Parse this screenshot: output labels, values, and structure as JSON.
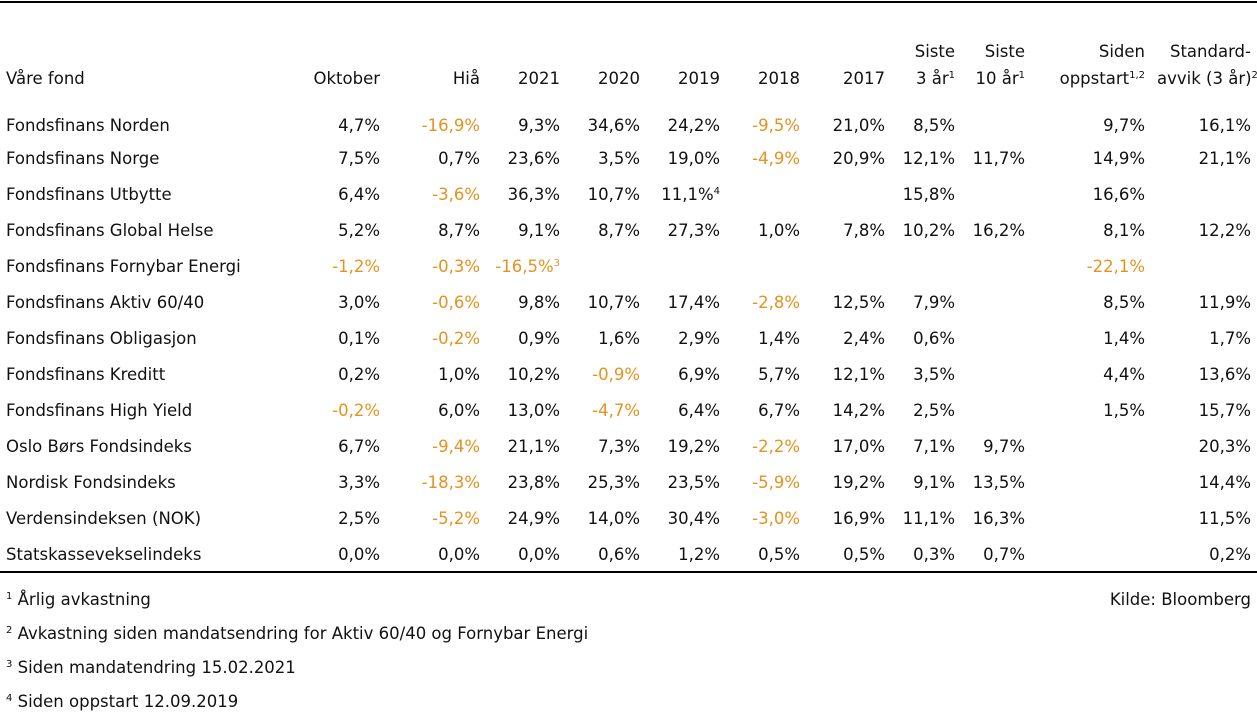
{
  "table": {
    "columns": [
      {
        "label": "Våre fond",
        "label2": "",
        "sup": ""
      },
      {
        "label": "",
        "label2": "Oktober",
        "sup": ""
      },
      {
        "label": "",
        "label2": "Hiå",
        "sup": ""
      },
      {
        "label": "",
        "label2": "2021",
        "sup": ""
      },
      {
        "label": "",
        "label2": "2020",
        "sup": ""
      },
      {
        "label": "",
        "label2": "2019",
        "sup": ""
      },
      {
        "label": "",
        "label2": "2018",
        "sup": ""
      },
      {
        "label": "",
        "label2": "2017",
        "sup": ""
      },
      {
        "label": "Siste",
        "label2": "3 år",
        "sup": "1"
      },
      {
        "label": "Siste",
        "label2": "10 år",
        "sup": "1"
      },
      {
        "label": "Siden",
        "label2": "oppstart",
        "sup": "1,2"
      },
      {
        "label": "Standard-",
        "label2": "avvik (3 år)",
        "sup": "2"
      }
    ],
    "rows": [
      {
        "name": "Fondsfinans Norden",
        "cells": [
          {
            "v": "4,7%",
            "neg": false
          },
          {
            "v": "-16,9%",
            "neg": true
          },
          {
            "v": "9,3%",
            "neg": false
          },
          {
            "v": "34,6%",
            "neg": false
          },
          {
            "v": "24,2%",
            "neg": false
          },
          {
            "v": "-9,5%",
            "neg": true
          },
          {
            "v": "21,0%",
            "neg": false
          },
          {
            "v": "8,5%",
            "neg": false
          },
          {
            "v": "",
            "neg": false
          },
          {
            "v": "9,7%",
            "neg": false
          },
          {
            "v": "16,1%",
            "neg": false
          }
        ]
      },
      {
        "name": "Fondsfinans Norge",
        "cells": [
          {
            "v": "7,5%",
            "neg": false
          },
          {
            "v": "0,7%",
            "neg": false
          },
          {
            "v": "23,6%",
            "neg": false
          },
          {
            "v": "3,5%",
            "neg": false
          },
          {
            "v": "19,0%",
            "neg": false
          },
          {
            "v": "-4,9%",
            "neg": true
          },
          {
            "v": "20,9%",
            "neg": false
          },
          {
            "v": "12,1%",
            "neg": false
          },
          {
            "v": "11,7%",
            "neg": false
          },
          {
            "v": "14,9%",
            "neg": false
          },
          {
            "v": "21,1%",
            "neg": false
          }
        ]
      },
      {
        "name": "Fondsfinans Utbytte",
        "cells": [
          {
            "v": "6,4%",
            "neg": false
          },
          {
            "v": "-3,6%",
            "neg": true
          },
          {
            "v": "36,3%",
            "neg": false
          },
          {
            "v": "10,7%",
            "neg": false
          },
          {
            "v": "11,1%",
            "neg": false,
            "sup": "4"
          },
          {
            "v": "",
            "neg": false
          },
          {
            "v": "",
            "neg": false
          },
          {
            "v": "15,8%",
            "neg": false
          },
          {
            "v": "",
            "neg": false
          },
          {
            "v": "16,6%",
            "neg": false
          },
          {
            "v": "",
            "neg": false
          }
        ]
      },
      {
        "name": "Fondsfinans Global Helse",
        "cells": [
          {
            "v": "5,2%",
            "neg": false
          },
          {
            "v": "8,7%",
            "neg": false
          },
          {
            "v": "9,1%",
            "neg": false
          },
          {
            "v": "8,7%",
            "neg": false
          },
          {
            "v": "27,3%",
            "neg": false
          },
          {
            "v": "1,0%",
            "neg": false
          },
          {
            "v": "7,8%",
            "neg": false
          },
          {
            "v": "10,2%",
            "neg": false
          },
          {
            "v": "16,2%",
            "neg": false
          },
          {
            "v": "8,1%",
            "neg": false
          },
          {
            "v": "12,2%",
            "neg": false
          }
        ]
      },
      {
        "name": "Fondsfinans Fornybar Energi",
        "cells": [
          {
            "v": "-1,2%",
            "neg": true
          },
          {
            "v": "-0,3%",
            "neg": true
          },
          {
            "v": "-16,5%",
            "neg": true,
            "sup": "3"
          },
          {
            "v": "",
            "neg": false
          },
          {
            "v": "",
            "neg": false
          },
          {
            "v": "",
            "neg": false
          },
          {
            "v": "",
            "neg": false
          },
          {
            "v": "",
            "neg": false
          },
          {
            "v": "",
            "neg": false
          },
          {
            "v": "-22,1%",
            "neg": true
          },
          {
            "v": "",
            "neg": false
          }
        ]
      },
      {
        "name": "Fondsfinans Aktiv 60/40",
        "cells": [
          {
            "v": "3,0%",
            "neg": false
          },
          {
            "v": "-0,6%",
            "neg": true
          },
          {
            "v": "9,8%",
            "neg": false
          },
          {
            "v": "10,7%",
            "neg": false
          },
          {
            "v": "17,4%",
            "neg": false
          },
          {
            "v": "-2,8%",
            "neg": true
          },
          {
            "v": "12,5%",
            "neg": false
          },
          {
            "v": "7,9%",
            "neg": false
          },
          {
            "v": "",
            "neg": false
          },
          {
            "v": "8,5%",
            "neg": false
          },
          {
            "v": "11,9%",
            "neg": false
          }
        ]
      },
      {
        "name": "Fondsfinans Obligasjon",
        "cells": [
          {
            "v": "0,1%",
            "neg": false
          },
          {
            "v": "-0,2%",
            "neg": true
          },
          {
            "v": "0,9%",
            "neg": false
          },
          {
            "v": "1,6%",
            "neg": false
          },
          {
            "v": "2,9%",
            "neg": false
          },
          {
            "v": "1,4%",
            "neg": false
          },
          {
            "v": "2,4%",
            "neg": false
          },
          {
            "v": "0,6%",
            "neg": false
          },
          {
            "v": "",
            "neg": false
          },
          {
            "v": "1,4%",
            "neg": false
          },
          {
            "v": "1,7%",
            "neg": false
          }
        ]
      },
      {
        "name": "Fondsfinans Kreditt",
        "cells": [
          {
            "v": "0,2%",
            "neg": false
          },
          {
            "v": "1,0%",
            "neg": false
          },
          {
            "v": "10,2%",
            "neg": false
          },
          {
            "v": "-0,9%",
            "neg": true
          },
          {
            "v": "6,9%",
            "neg": false
          },
          {
            "v": "5,7%",
            "neg": false
          },
          {
            "v": "12,1%",
            "neg": false
          },
          {
            "v": "3,5%",
            "neg": false
          },
          {
            "v": "",
            "neg": false
          },
          {
            "v": "4,4%",
            "neg": false
          },
          {
            "v": "13,6%",
            "neg": false
          }
        ]
      },
      {
        "name": "Fondsfinans High Yield",
        "cells": [
          {
            "v": "-0,2%",
            "neg": true
          },
          {
            "v": "6,0%",
            "neg": false
          },
          {
            "v": "13,0%",
            "neg": false
          },
          {
            "v": "-4,7%",
            "neg": true
          },
          {
            "v": "6,4%",
            "neg": false
          },
          {
            "v": "6,7%",
            "neg": false
          },
          {
            "v": "14,2%",
            "neg": false
          },
          {
            "v": "2,5%",
            "neg": false
          },
          {
            "v": "",
            "neg": false
          },
          {
            "v": "1,5%",
            "neg": false
          },
          {
            "v": "15,7%",
            "neg": false
          }
        ]
      },
      {
        "name": "Oslo Børs Fondsindeks",
        "cells": [
          {
            "v": "6,7%",
            "neg": false
          },
          {
            "v": "-9,4%",
            "neg": true
          },
          {
            "v": "21,1%",
            "neg": false
          },
          {
            "v": "7,3%",
            "neg": false
          },
          {
            "v": "19,2%",
            "neg": false
          },
          {
            "v": "-2,2%",
            "neg": true
          },
          {
            "v": "17,0%",
            "neg": false
          },
          {
            "v": "7,1%",
            "neg": false
          },
          {
            "v": "9,7%",
            "neg": false
          },
          {
            "v": "",
            "neg": false
          },
          {
            "v": "20,3%",
            "neg": false
          }
        ]
      },
      {
        "name": "Nordisk Fondsindeks",
        "cells": [
          {
            "v": "3,3%",
            "neg": false
          },
          {
            "v": "-18,3%",
            "neg": true
          },
          {
            "v": "23,8%",
            "neg": false
          },
          {
            "v": "25,3%",
            "neg": false
          },
          {
            "v": "23,5%",
            "neg": false
          },
          {
            "v": "-5,9%",
            "neg": true
          },
          {
            "v": "19,2%",
            "neg": false
          },
          {
            "v": "9,1%",
            "neg": false
          },
          {
            "v": "13,5%",
            "neg": false
          },
          {
            "v": "",
            "neg": false
          },
          {
            "v": "14,4%",
            "neg": false
          }
        ]
      },
      {
        "name": "Verdensindeksen (NOK)",
        "cells": [
          {
            "v": "2,5%",
            "neg": false
          },
          {
            "v": "-5,2%",
            "neg": true
          },
          {
            "v": "24,9%",
            "neg": false
          },
          {
            "v": "14,0%",
            "neg": false
          },
          {
            "v": "30,4%",
            "neg": false
          },
          {
            "v": "-3,0%",
            "neg": true
          },
          {
            "v": "16,9%",
            "neg": false
          },
          {
            "v": "11,1%",
            "neg": false
          },
          {
            "v": "16,3%",
            "neg": false
          },
          {
            "v": "",
            "neg": false
          },
          {
            "v": "11,5%",
            "neg": false
          }
        ]
      },
      {
        "name": "Statskassevekselindeks",
        "cells": [
          {
            "v": "0,0%",
            "neg": false
          },
          {
            "v": "0,0%",
            "neg": false
          },
          {
            "v": "0,0%",
            "neg": false
          },
          {
            "v": "0,6%",
            "neg": false
          },
          {
            "v": "1,2%",
            "neg": false
          },
          {
            "v": "0,5%",
            "neg": false
          },
          {
            "v": "0,5%",
            "neg": false
          },
          {
            "v": "0,3%",
            "neg": false
          },
          {
            "v": "0,7%",
            "neg": false
          },
          {
            "v": "",
            "neg": false
          },
          {
            "v": "0,2%",
            "neg": false
          }
        ]
      }
    ]
  },
  "footnotes": [
    {
      "num": "1",
      "text": "Årlig avkastning"
    },
    {
      "num": "2",
      "text": "Avkastning siden mandatsendring for Aktiv 60/40 og Fornybar Energi"
    },
    {
      "num": "3",
      "text": "Siden mandatendring 15.02.2021"
    },
    {
      "num": "4",
      "text": "Siden oppstart 12.09.2019"
    }
  ],
  "source": "Kilde: Bloomberg",
  "colors": {
    "negative": "#e3931f",
    "text": "#111111",
    "rule": "#000000"
  }
}
